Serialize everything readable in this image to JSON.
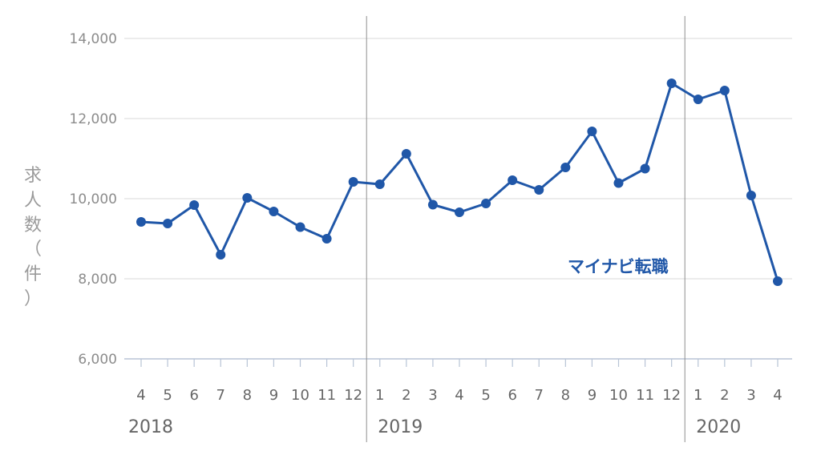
{
  "chart_data": {
    "type": "line",
    "title": "",
    "xlabel": "",
    "ylabel": "求人数（件）",
    "ylim": [
      6000,
      14000
    ],
    "yticks": [
      "6,000",
      "8,000",
      "10,000",
      "12,000",
      "14,000"
    ],
    "ytick_values": [
      6000,
      8000,
      10000,
      12000,
      14000
    ],
    "grid": true,
    "color": "#2057a8",
    "x": [
      "4",
      "5",
      "6",
      "7",
      "8",
      "9",
      "10",
      "11",
      "12",
      "1",
      "2",
      "3",
      "4",
      "5",
      "6",
      "7",
      "8",
      "9",
      "10",
      "11",
      "12",
      "1",
      "2",
      "3",
      "4"
    ],
    "years": [
      {
        "label": "2018",
        "start_index": 0
      },
      {
        "label": "2019",
        "start_index": 9
      },
      {
        "label": "2020",
        "start_index": 21
      }
    ],
    "series": [
      {
        "name": "マイナビ転職",
        "values": [
          9420,
          9380,
          9840,
          8600,
          10020,
          9680,
          9290,
          9000,
          10420,
          10360,
          11120,
          9850,
          9660,
          9880,
          10460,
          10220,
          10780,
          11680,
          10390,
          10750,
          12880,
          12480,
          12700,
          10080,
          7940
        ]
      }
    ]
  }
}
